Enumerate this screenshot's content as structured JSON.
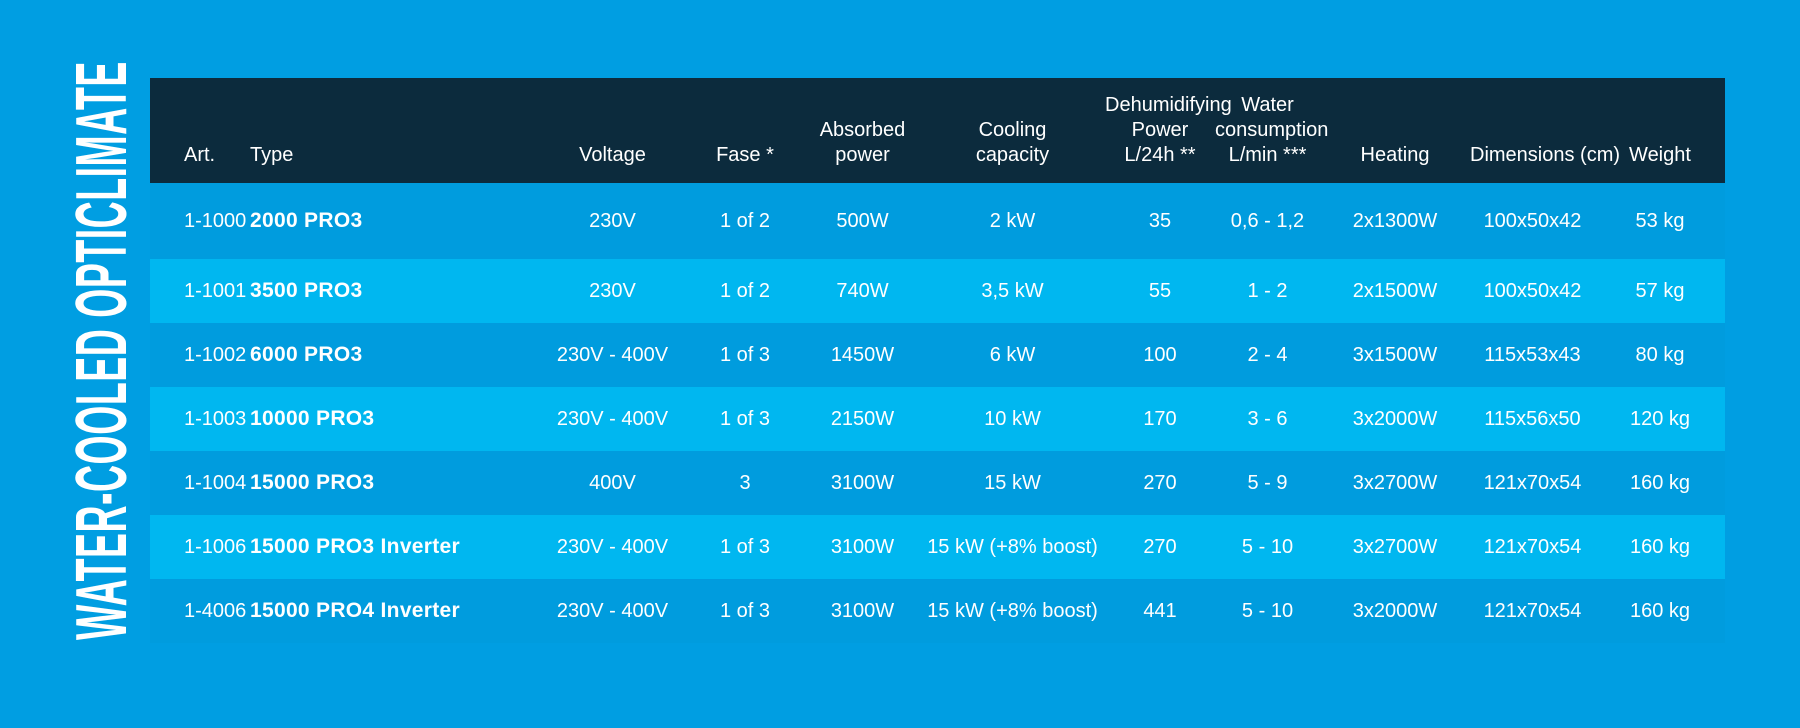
{
  "title": {
    "vertical_label": "WATER-COOLED OPTICLIMATE"
  },
  "colors": {
    "page_bg": "#009EE2",
    "header_bg": "#0C2B3D",
    "row_even_bg": "#00B7F0",
    "row_odd_bg": "#009CDE",
    "text": "#FFFFFF"
  },
  "table": {
    "columns": [
      {
        "id": "art",
        "label": "Art."
      },
      {
        "id": "type",
        "label": "Type"
      },
      {
        "id": "voltage",
        "label": "Voltage"
      },
      {
        "id": "fase",
        "label": "Fase *"
      },
      {
        "id": "absorbed_power",
        "label": "Absorbed\npower"
      },
      {
        "id": "cooling_capacity",
        "label": "Cooling\ncapacity"
      },
      {
        "id": "dehumidifying_power",
        "label": "Dehumidifying\nPower\nL/24h **"
      },
      {
        "id": "water_consumption",
        "label": "Water\nconsumption\nL/min ***"
      },
      {
        "id": "heating",
        "label": "Heating"
      },
      {
        "id": "dimensions",
        "label": "Dimensions (cm)"
      },
      {
        "id": "weight",
        "label": "Weight"
      }
    ],
    "rows": [
      {
        "art": "1-1000",
        "type": "2000 PRO3",
        "voltage": "230V",
        "fase": "1 of 2",
        "absorbed_power": "500W",
        "cooling_capacity": "2 kW",
        "dehumidifying_power": "35",
        "water_consumption": "0,6 - 1,2",
        "heating": "2x1300W",
        "dimensions": "100x50x42",
        "weight": "53 kg"
      },
      {
        "art": "1-1001",
        "type": "3500 PRO3",
        "voltage": "230V",
        "fase": "1 of 2",
        "absorbed_power": "740W",
        "cooling_capacity": "3,5 kW",
        "dehumidifying_power": "55",
        "water_consumption": "1 - 2",
        "heating": "2x1500W",
        "dimensions": "100x50x42",
        "weight": "57 kg"
      },
      {
        "art": "1-1002",
        "type": "6000 PRO3",
        "voltage": "230V - 400V",
        "fase": "1 of 3",
        "absorbed_power": "1450W",
        "cooling_capacity": "6 kW",
        "dehumidifying_power": "100",
        "water_consumption": "2 - 4",
        "heating": "3x1500W",
        "dimensions": "115x53x43",
        "weight": "80 kg"
      },
      {
        "art": "1-1003",
        "type": "10000 PRO3",
        "voltage": "230V - 400V",
        "fase": "1 of 3",
        "absorbed_power": "2150W",
        "cooling_capacity": "10 kW",
        "dehumidifying_power": "170",
        "water_consumption": "3 - 6",
        "heating": "3x2000W",
        "dimensions": "115x56x50",
        "weight": "120 kg"
      },
      {
        "art": "1-1004",
        "type": "15000 PRO3",
        "voltage": "400V",
        "fase": "3",
        "absorbed_power": "3100W",
        "cooling_capacity": "15 kW",
        "dehumidifying_power": "270",
        "water_consumption": "5 - 9",
        "heating": "3x2700W",
        "dimensions": "121x70x54",
        "weight": "160 kg"
      },
      {
        "art": "1-1006",
        "type": "15000 PRO3 Inverter",
        "voltage": "230V - 400V",
        "fase": "1 of 3",
        "absorbed_power": "3100W",
        "cooling_capacity": "15 kW (+8% boost)",
        "dehumidifying_power": "270",
        "water_consumption": "5 - 10",
        "heating": "3x2700W",
        "dimensions": "121x70x54",
        "weight": "160 kg"
      },
      {
        "art": "1-4006",
        "type": "15000 PRO4 Inverter",
        "voltage": "230V - 400V",
        "fase": "1 of 3",
        "absorbed_power": "3100W",
        "cooling_capacity": "15 kW (+8% boost)",
        "dehumidifying_power": "441",
        "water_consumption": "5 - 10",
        "heating": "3x2000W",
        "dimensions": "121x70x54",
        "weight": "160 kg"
      }
    ]
  }
}
